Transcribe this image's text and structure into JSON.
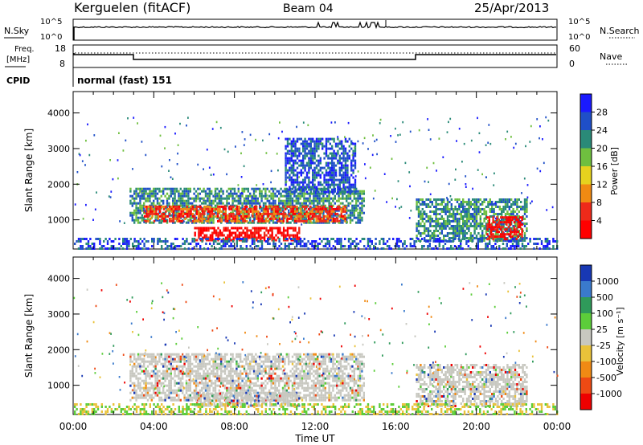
{
  "header": {
    "station": "Kerguelen (fitACF)",
    "beam": "Beam 04",
    "date": "25/Apr/2013"
  },
  "top_panel": {
    "left_label": "N.Sky",
    "left_ticks": [
      "10^5",
      "10^0"
    ],
    "right_label": "N.Search",
    "right_ticks": [
      "10^5",
      "10^0"
    ]
  },
  "freq_panel": {
    "left_label_1": "Freq.",
    "left_label_2": "[MHz]",
    "left_ticks": [
      "18",
      "8"
    ],
    "right_label": "Nave",
    "right_ticks": [
      "60",
      "0"
    ]
  },
  "cpid": {
    "label": "CPID",
    "value": "normal (fast) 151"
  },
  "chart_data": [
    {
      "type": "heatmap",
      "quantity": "Power",
      "ylabel": "Slant Range [km]",
      "xlabel": "",
      "x_ticks": [
        "00:00",
        "04:00",
        "08:00",
        "12:00",
        "16:00",
        "20:00",
        "00:00"
      ],
      "xlim_hours": [
        0,
        24
      ],
      "y_ticks": [
        "1000",
        "2000",
        "3000",
        "4000"
      ],
      "ylim_km": [
        180,
        4600
      ],
      "colorbar": {
        "label": "Power [dB]",
        "ticks": [
          "4",
          "8",
          "12",
          "16",
          "20",
          "24",
          "28"
        ],
        "colors": [
          "#1a1aff",
          "#1f4fc8",
          "#2a8a78",
          "#6fbf3f",
          "#e6d21e",
          "#f08a12",
          "#ee2a1a",
          "#ff0000"
        ]
      },
      "regions": [
        {
          "t0": 2.8,
          "t1": 14.4,
          "r0": 900,
          "r1": 1900,
          "level": 2
        },
        {
          "t0": 3.5,
          "t1": 13.5,
          "r0": 950,
          "r1": 1400,
          "level": 6
        },
        {
          "t0": 6.0,
          "t1": 11.2,
          "r0": 450,
          "r1": 800,
          "level": 7
        },
        {
          "t0": 10.5,
          "t1": 14.0,
          "r0": 1800,
          "r1": 3300,
          "level": 1
        },
        {
          "t0": 17.0,
          "t1": 22.5,
          "r0": 400,
          "r1": 1600,
          "level": 2
        },
        {
          "t0": 20.5,
          "t1": 22.3,
          "r0": 450,
          "r1": 1100,
          "level": 7
        }
      ]
    },
    {
      "type": "heatmap",
      "quantity": "Velocity",
      "ylabel": "Slant Range [km]",
      "xlabel": "Time UT",
      "x_ticks": [
        "00:00",
        "04:00",
        "08:00",
        "12:00",
        "16:00",
        "20:00",
        "00:00"
      ],
      "xlim_hours": [
        0,
        24
      ],
      "y_ticks": [
        "1000",
        "2000",
        "3000",
        "4000"
      ],
      "ylim_km": [
        180,
        4600
      ],
      "colorbar": {
        "label": "Velocity [m s⁻¹]",
        "ticks": [
          "1000",
          "500",
          "100",
          "25",
          "-25",
          "-100",
          "-500",
          "-1000"
        ],
        "colors": [
          "#1838b4",
          "#3a7acc",
          "#2f9a5a",
          "#5ccd3a",
          "#c8c8c0",
          "#e9c23a",
          "#f08a14",
          "#ee4a14",
          "#ee0000"
        ]
      },
      "regions": [
        {
          "t0": 2.8,
          "t1": 14.4,
          "r0": 600,
          "r1": 1900,
          "level": 4
        },
        {
          "t0": 6.0,
          "t1": 11.2,
          "r0": 450,
          "r1": 800,
          "level": 4
        },
        {
          "t0": 17.0,
          "t1": 22.5,
          "r0": 400,
          "r1": 1600,
          "level": 4
        }
      ]
    }
  ]
}
